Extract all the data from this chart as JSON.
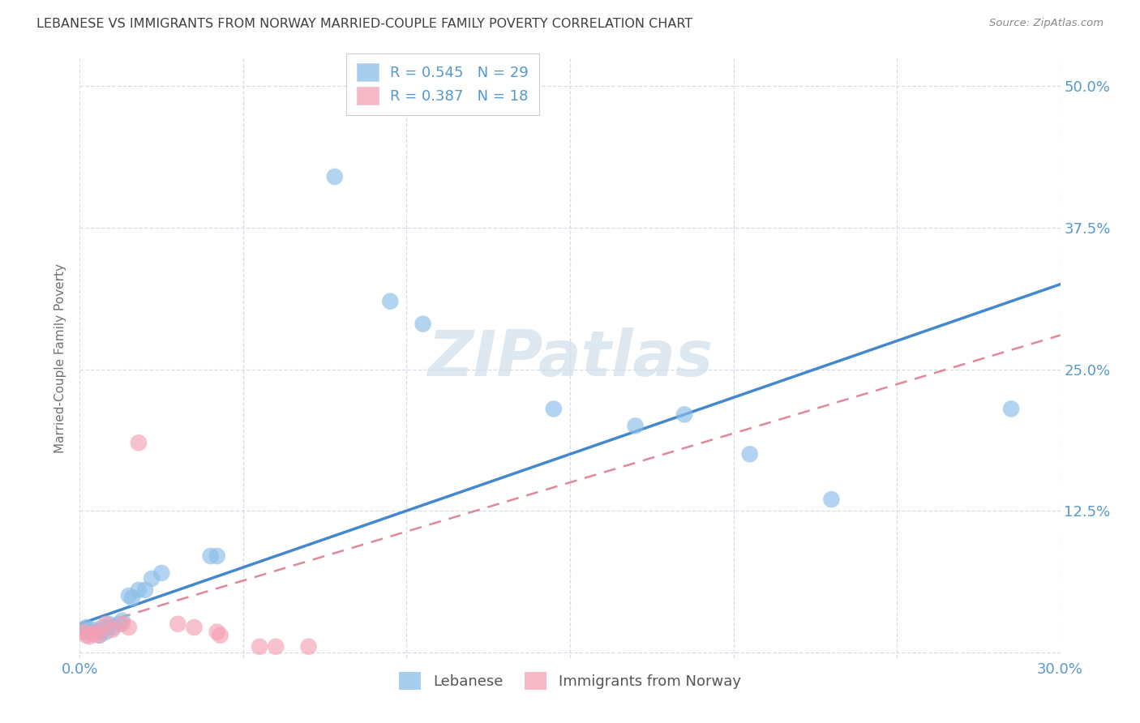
{
  "title": "LEBANESE VS IMMIGRANTS FROM NORWAY MARRIED-COUPLE FAMILY POVERTY CORRELATION CHART",
  "source": "Source: ZipAtlas.com",
  "ylabel_label": "Married-Couple Family Poverty",
  "xmin": 0.0,
  "xmax": 0.3,
  "ymin": -0.005,
  "ymax": 0.525,
  "ytick_vals": [
    0.0,
    0.125,
    0.25,
    0.375,
    0.5
  ],
  "ytick_labels": [
    "",
    "12.5%",
    "25.0%",
    "37.5%",
    "50.0%"
  ],
  "xtick_vals": [
    0.0,
    0.05,
    0.1,
    0.15,
    0.2,
    0.25,
    0.3
  ],
  "xtick_labels": [
    "0.0%",
    "",
    "",
    "",
    "",
    "",
    "30.0%"
  ],
  "legend_entries": [
    {
      "R": "0.545",
      "N": "29"
    },
    {
      "R": "0.387",
      "N": "18"
    }
  ],
  "legend_labels": [
    "Lebanese",
    "Immigrants from Norway"
  ],
  "blue_scatter": [
    [
      0.001,
      0.02
    ],
    [
      0.002,
      0.022
    ],
    [
      0.003,
      0.018
    ],
    [
      0.004,
      0.02
    ],
    [
      0.005,
      0.018
    ],
    [
      0.006,
      0.015
    ],
    [
      0.007,
      0.022
    ],
    [
      0.008,
      0.018
    ],
    [
      0.009,
      0.025
    ],
    [
      0.01,
      0.022
    ],
    [
      0.012,
      0.025
    ],
    [
      0.013,
      0.028
    ],
    [
      0.015,
      0.05
    ],
    [
      0.016,
      0.048
    ],
    [
      0.018,
      0.055
    ],
    [
      0.02,
      0.055
    ],
    [
      0.022,
      0.065
    ],
    [
      0.025,
      0.07
    ],
    [
      0.04,
      0.085
    ],
    [
      0.042,
      0.085
    ],
    [
      0.078,
      0.42
    ],
    [
      0.095,
      0.31
    ],
    [
      0.105,
      0.29
    ],
    [
      0.145,
      0.215
    ],
    [
      0.17,
      0.2
    ],
    [
      0.185,
      0.21
    ],
    [
      0.205,
      0.175
    ],
    [
      0.23,
      0.135
    ],
    [
      0.285,
      0.215
    ]
  ],
  "pink_scatter": [
    [
      0.001,
      0.018
    ],
    [
      0.002,
      0.015
    ],
    [
      0.003,
      0.014
    ],
    [
      0.004,
      0.016
    ],
    [
      0.005,
      0.018
    ],
    [
      0.006,
      0.015
    ],
    [
      0.008,
      0.025
    ],
    [
      0.01,
      0.02
    ],
    [
      0.013,
      0.025
    ],
    [
      0.015,
      0.022
    ],
    [
      0.018,
      0.185
    ],
    [
      0.03,
      0.025
    ],
    [
      0.035,
      0.022
    ],
    [
      0.042,
      0.018
    ],
    [
      0.043,
      0.015
    ],
    [
      0.055,
      0.005
    ],
    [
      0.07,
      0.005
    ],
    [
      0.06,
      0.005
    ]
  ],
  "blue_line": {
    "x0": 0.0,
    "y0": 0.025,
    "x1": 0.3,
    "y1": 0.325
  },
  "pink_line": {
    "x0": 0.0,
    "y0": 0.02,
    "x1": 0.3,
    "y1": 0.28
  },
  "scatter_color_blue": "#8bbee8",
  "scatter_color_pink": "#f4a0b5",
  "line_color_blue": "#4488cc",
  "line_color_pink": "#e08898",
  "background_color": "#ffffff",
  "grid_color": "#d5dde8",
  "title_color": "#404040",
  "tick_label_color": "#5599cc",
  "axis_label_color": "#707070",
  "source_color": "#888888",
  "watermark_color": "#dde8f0",
  "legend_text_color": "#5599cc"
}
